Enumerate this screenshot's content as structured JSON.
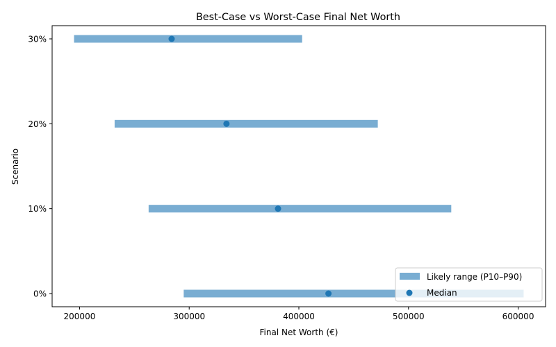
{
  "chart_data": {
    "type": "range_bar",
    "title": "Best-Case vs Worst-Case Final Net Worth",
    "xlabel": "Final Net Worth (€)",
    "ylabel": "Scenario",
    "xlim": [
      175000,
      625000
    ],
    "xticks": [
      200000,
      300000,
      400000,
      500000,
      600000
    ],
    "xtick_labels": [
      "200000",
      "300000",
      "400000",
      "500000",
      "600000"
    ],
    "categories": [
      "0%",
      "10%",
      "20%",
      "30%"
    ],
    "series": [
      {
        "name": "Likely range (P10–P90)",
        "type": "range",
        "low": [
          295000,
          263000,
          232000,
          195000
        ],
        "high": [
          605000,
          539000,
          472000,
          403000
        ]
      },
      {
        "name": "Median",
        "type": "scatter",
        "values": [
          427000,
          381000,
          334000,
          284000
        ]
      }
    ],
    "legend": {
      "position": "lower right",
      "entries": [
        "Likely range (P10–P90)",
        "Median"
      ]
    },
    "grid": false,
    "colors": {
      "range": "#1f77b4",
      "range_alpha": 0.6,
      "median": "#1f77b4"
    }
  }
}
